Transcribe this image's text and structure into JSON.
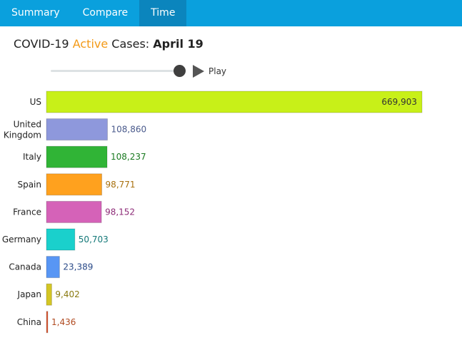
{
  "tabs": [
    {
      "label": "Summary",
      "active": false
    },
    {
      "label": "Compare",
      "active": false
    },
    {
      "label": "Time",
      "active": true
    }
  ],
  "headline": {
    "prefix": "COVID-19",
    "accent": "Active",
    "suffix": "Cases:",
    "date": "April 19"
  },
  "player": {
    "play_label": "Play",
    "position": 1.0
  },
  "colors": {
    "tabbar": "#0aa0dd",
    "tab_active": "#0b85bd",
    "accent": "#f39a17"
  },
  "chart_data": {
    "type": "bar",
    "orientation": "horizontal",
    "categories": [
      "US",
      "United Kingdom",
      "Italy",
      "Spain",
      "France",
      "Germany",
      "Canada",
      "Japan",
      "China"
    ],
    "values": [
      669903,
      108860,
      108237,
      98771,
      98152,
      50703,
      23389,
      9402,
      1436
    ],
    "value_labels": [
      "669,903",
      "108,860",
      "108,237",
      "98,771",
      "98,152",
      "50,703",
      "23,389",
      "9,402",
      "1,436"
    ],
    "colors": [
      "#c8f018",
      "#8e98dc",
      "#30b436",
      "#ffa11e",
      "#d562b8",
      "#1ad0cc",
      "#5896f4",
      "#d4c624",
      "#e05a34"
    ],
    "label_colors": [
      "#333333",
      "#4a5a8c",
      "#1a7a20",
      "#a8700e",
      "#8e2c78",
      "#137878",
      "#2a4a88",
      "#8a7a10",
      "#b04a20"
    ],
    "xlim": [
      0,
      669903
    ]
  }
}
